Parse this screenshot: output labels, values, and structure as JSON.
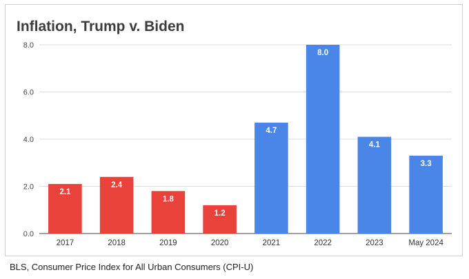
{
  "chart_data": {
    "type": "bar",
    "title": "Inflation, Trump v. Biden",
    "xlabel": "",
    "ylabel": "",
    "ylim": [
      0,
      8
    ],
    "yticks": [
      "0.0",
      "2.0",
      "4.0",
      "6.0",
      "8.0"
    ],
    "grid": true,
    "categories": [
      "2017",
      "2018",
      "2019",
      "2020",
      "2021",
      "2022",
      "2023",
      "May 2024"
    ],
    "values": [
      2.1,
      2.4,
      1.8,
      1.2,
      4.7,
      8.0,
      4.1,
      3.3
    ],
    "data_labels": [
      "2.1",
      "2.4",
      "1.8",
      "1.2",
      "4.7",
      "8.0",
      "4.1",
      "3.3"
    ],
    "bar_colors": [
      "#e8423a",
      "#e8423a",
      "#e8423a",
      "#e8423a",
      "#4a86e8",
      "#4a86e8",
      "#4a86e8",
      "#4a86e8"
    ]
  },
  "source": "BLS, Consumer Price Index for All Urban Consumers (CPI-U)"
}
